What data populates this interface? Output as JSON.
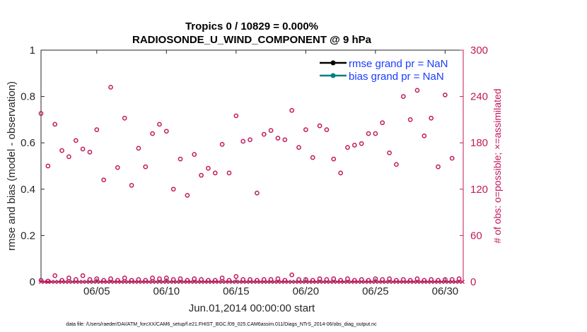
{
  "chart_data": {
    "type": "scatter",
    "title": "Tropics 0 / 10829 = 0.000%",
    "subtitle": "RADIOSONDE_U_WIND_COMPONENT @ 9 hPa",
    "xlabel": "Jun.01,2014 00:00:00 start",
    "ylabel": "rmse and bias (model - observation)",
    "y2label": "# of obs: o=possible; ×=assimilated",
    "xlim": [
      1,
      31.3
    ],
    "ylim": [
      0,
      1
    ],
    "y2lim": [
      0,
      300
    ],
    "x_ticks": [
      {
        "value": 5,
        "label": "06/05"
      },
      {
        "value": 10,
        "label": "06/10"
      },
      {
        "value": 15,
        "label": "06/15"
      },
      {
        "value": 20,
        "label": "06/20"
      },
      {
        "value": 25,
        "label": "06/25"
      },
      {
        "value": 30,
        "label": "06/30"
      }
    ],
    "y_ticks": [
      {
        "value": 0,
        "label": "0"
      },
      {
        "value": 0.2,
        "label": "0.2"
      },
      {
        "value": 0.4,
        "label": "0.4"
      },
      {
        "value": 0.6,
        "label": "0.6"
      },
      {
        "value": 0.8,
        "label": "0.8"
      },
      {
        "value": 1,
        "label": "1"
      }
    ],
    "y2_ticks": [
      {
        "value": 0,
        "label": "0"
      },
      {
        "value": 60,
        "label": "60"
      },
      {
        "value": 120,
        "label": "120"
      },
      {
        "value": 180,
        "label": "180"
      },
      {
        "value": 240,
        "label": "240"
      },
      {
        "value": 300,
        "label": "300"
      }
    ],
    "legend": [
      {
        "label": "rmse grand pr = NaN",
        "color": "#000000"
      },
      {
        "label": "bias grand pr = NaN",
        "color": "#00807f"
      }
    ],
    "legend_position": "top-right",
    "series": [
      {
        "name": "possible (large)",
        "marker": "circle",
        "color": "#c2185b",
        "x": [
          1.0,
          1.5,
          2.0,
          2.5,
          3.0,
          3.5,
          4.0,
          4.5,
          5.0,
          5.5,
          6.0,
          6.5,
          7.0,
          7.5,
          8.0,
          8.5,
          9.0,
          9.5,
          10.0,
          10.5,
          11.0,
          11.5,
          12.0,
          12.5,
          13.0,
          13.5,
          14.0,
          14.5,
          15.0,
          15.5,
          16.0,
          16.5,
          17.0,
          17.5,
          18.0,
          18.5,
          19.0,
          19.5,
          20.0,
          20.5,
          21.0,
          21.5,
          22.0,
          22.5,
          23.0,
          23.5,
          24.0,
          24.5,
          25.0,
          25.5,
          26.0,
          26.5,
          27.0,
          27.5,
          28.0,
          28.5,
          29.0,
          29.5,
          30.0,
          30.5
        ],
        "y": [
          218,
          150,
          204,
          170,
          162,
          183,
          172,
          168,
          197,
          132,
          252,
          148,
          212,
          125,
          173,
          149,
          192,
          204,
          195,
          120,
          159,
          112,
          165,
          138,
          147,
          141,
          178,
          141,
          215,
          182,
          184,
          115,
          191,
          196,
          186,
          184,
          222,
          174,
          197,
          161,
          202,
          197,
          159,
          141,
          174,
          177,
          179,
          192,
          192,
          206,
          167,
          152,
          240,
          210,
          248,
          189,
          212,
          149,
          242,
          160
        ]
      },
      {
        "name": "possible (small)",
        "marker": "circle",
        "color": "#c2185b",
        "x": [
          1.0,
          1.5,
          2.0,
          2.5,
          3.0,
          3.5,
          4.0,
          4.5,
          5.0,
          5.5,
          6.0,
          6.5,
          7.0,
          7.5,
          8.0,
          8.5,
          9.0,
          9.5,
          10.0,
          10.5,
          11.0,
          11.5,
          12.0,
          12.5,
          13.0,
          13.5,
          14.0,
          14.5,
          15.0,
          15.5,
          16.0,
          16.5,
          17.0,
          17.5,
          18.0,
          18.5,
          19.0,
          19.5,
          20.0,
          20.5,
          21.0,
          21.5,
          22.0,
          22.5,
          23.0,
          23.5,
          24.0,
          24.5,
          25.0,
          25.5,
          26.0,
          26.5,
          27.0,
          27.5,
          28.0,
          28.5,
          29.0,
          29.5,
          30.0,
          30.5,
          31.0
        ],
        "y": [
          2,
          1,
          8,
          2,
          5,
          3,
          8,
          3,
          4,
          2,
          4,
          2,
          5,
          2,
          3,
          2,
          5,
          4,
          5,
          3,
          4,
          2,
          4,
          3,
          2,
          2,
          5,
          2,
          7,
          3,
          3,
          2,
          3,
          3,
          4,
          2,
          9,
          3,
          3,
          2,
          4,
          3,
          4,
          2,
          4,
          2,
          3,
          2,
          4,
          3,
          4,
          2,
          3,
          2,
          4,
          2,
          3,
          2,
          3,
          3,
          4
        ]
      },
      {
        "name": "assimilated",
        "marker": "x",
        "color": "#c2185b",
        "x": [
          1.0,
          1.25,
          1.5,
          1.75,
          2.0,
          2.25,
          2.5,
          2.75,
          3.0,
          3.25,
          3.5,
          3.75,
          4.0,
          4.25,
          4.5,
          4.75,
          5.0,
          5.25,
          5.5,
          5.75,
          6.0,
          6.25,
          6.5,
          6.75,
          7.0,
          7.25,
          7.5,
          7.75,
          8.0,
          8.25,
          8.5,
          8.75,
          9.0,
          9.25,
          9.5,
          9.75,
          10.0,
          10.25,
          10.5,
          10.75,
          11.0,
          11.25,
          11.5,
          11.75,
          12.0,
          12.25,
          12.5,
          12.75,
          13.0,
          13.25,
          13.5,
          13.75,
          14.0,
          14.25,
          14.5,
          14.75,
          15.0,
          15.25,
          15.5,
          15.75,
          16.0,
          16.25,
          16.5,
          16.75,
          17.0,
          17.25,
          17.5,
          17.75,
          18.0,
          18.25,
          18.5,
          18.75,
          19.0,
          19.25,
          19.5,
          19.75,
          20.0,
          20.25,
          20.5,
          20.75,
          21.0,
          21.25,
          21.5,
          21.75,
          22.0,
          22.25,
          22.5,
          22.75,
          23.0,
          23.25,
          23.5,
          23.75,
          24.0,
          24.25,
          24.5,
          24.75,
          25.0,
          25.25,
          25.5,
          25.75,
          26.0,
          26.25,
          26.5,
          26.75,
          27.0,
          27.25,
          27.5,
          27.75,
          28.0,
          28.25,
          28.5,
          28.75,
          29.0,
          29.25,
          29.5,
          29.75,
          30.0,
          30.25,
          30.5,
          30.75,
          31.0,
          31.25
        ],
        "y": [
          0,
          0,
          0,
          0,
          0,
          0,
          0,
          0,
          0,
          0,
          0,
          0,
          0,
          0,
          0,
          0,
          0,
          0,
          0,
          0,
          0,
          0,
          0,
          0,
          0,
          0,
          0,
          0,
          0,
          0,
          0,
          0,
          0,
          0,
          0,
          0,
          0,
          0,
          0,
          0,
          0,
          0,
          0,
          0,
          0,
          0,
          0,
          0,
          0,
          0,
          0,
          0,
          0,
          0,
          0,
          0,
          0,
          0,
          0,
          0,
          0,
          0,
          0,
          0,
          0,
          0,
          0,
          0,
          0,
          0,
          0,
          0,
          0,
          0,
          0,
          0,
          0,
          0,
          0,
          0,
          0,
          0,
          0,
          0,
          0,
          0,
          0,
          0,
          0,
          0,
          0,
          0,
          0,
          0,
          0,
          0,
          0,
          0,
          0,
          0,
          0,
          0,
          0,
          0,
          0,
          0,
          0,
          0,
          0,
          0,
          0,
          0,
          0,
          0,
          0,
          0,
          0,
          0,
          0,
          0,
          0,
          0
        ]
      }
    ]
  },
  "footer": "data file: /Users/raeder/DAI/ATM_forcXX/CAM6_setup/f.e21.FHIST_BGC.f09_025.CAM6assim.011/Diags_NTrS_2014-06/obs_diag_output.nc"
}
